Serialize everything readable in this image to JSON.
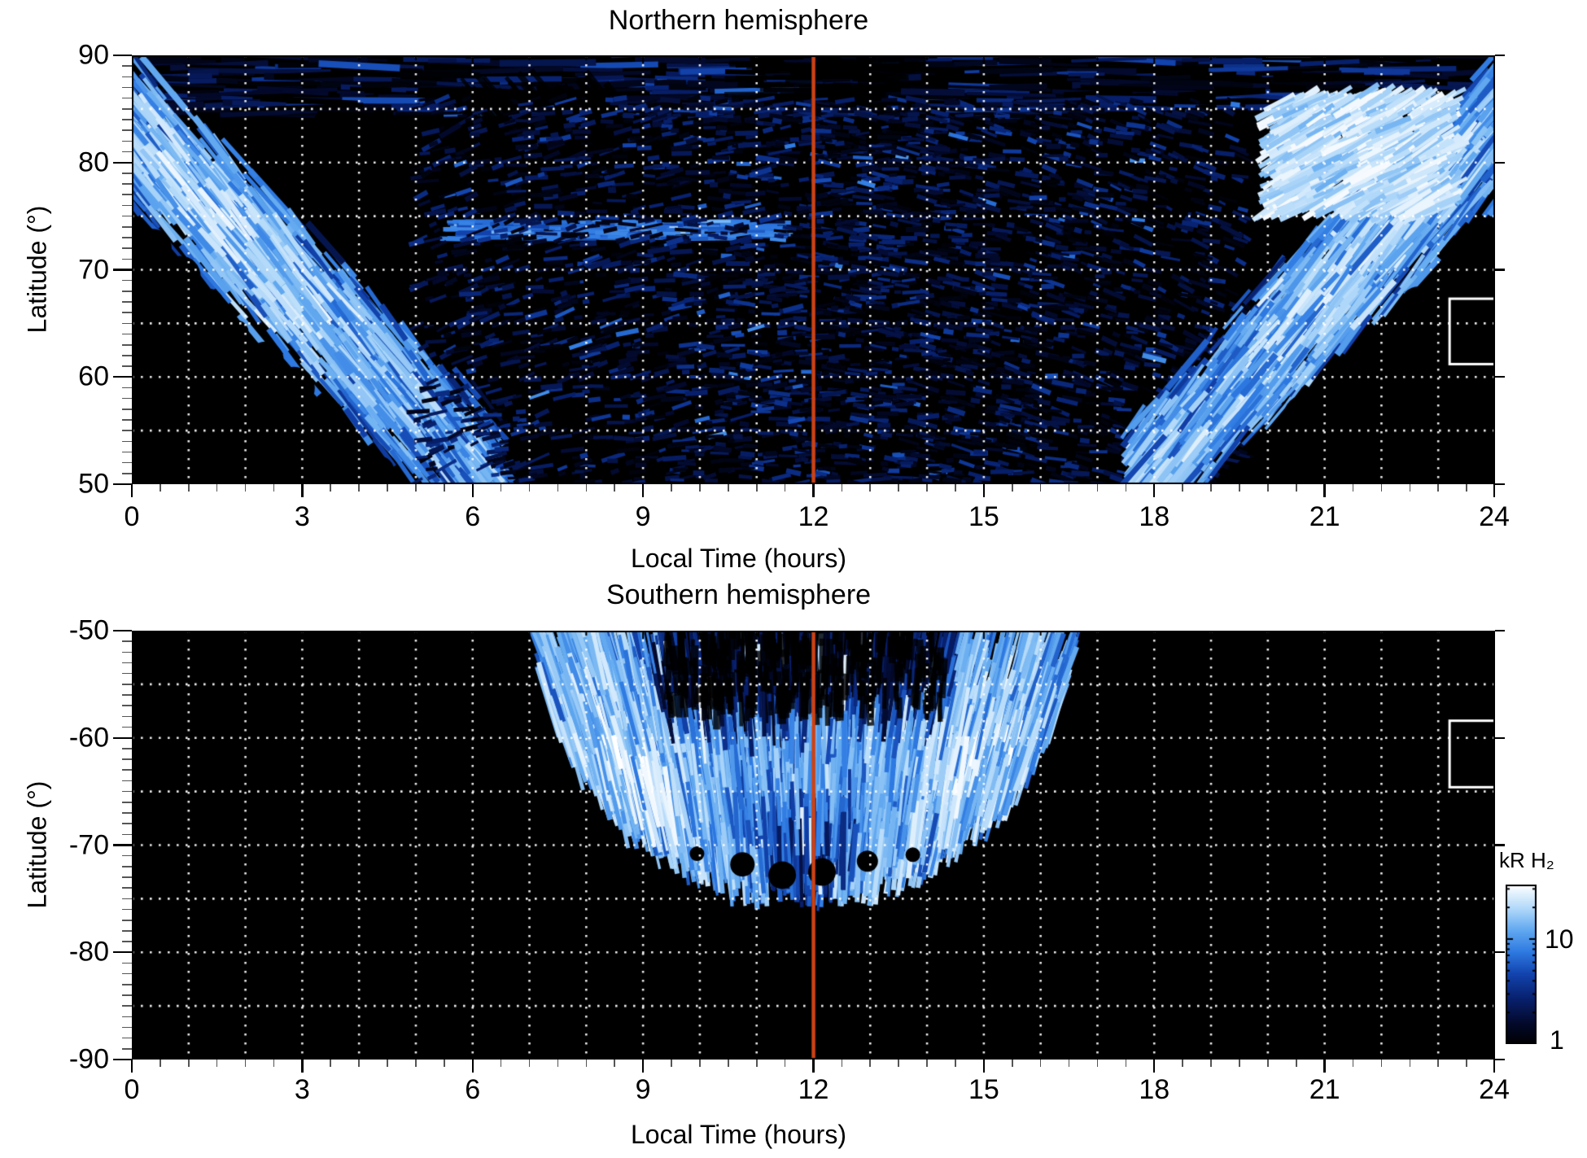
{
  "figure": {
    "background": "#ffffff",
    "description": "Two-panel heatmap of auroral H2 emission brightness versus magnetic local time and latitude, northern and southern hemispheres, with log color scale in kR."
  },
  "panels": [
    {
      "id": "north",
      "title": "Northern hemisphere",
      "xlabel": "Local Time (hours)",
      "ylabel": "Latitude (°)",
      "xtick_labels": [
        "0",
        "3",
        "6",
        "9",
        "12",
        "15",
        "18",
        "21",
        "24"
      ],
      "ytick_labels": [
        "90",
        "80",
        "70",
        "60",
        "50"
      ],
      "noon_line_hour": 12,
      "noon_line_color": "#cc4214",
      "fov_box_color": "#ffffff",
      "fov_box": {
        "hours": [
          23.2,
          24.0
        ],
        "lat": [
          61.2,
          67.3
        ]
      }
    },
    {
      "id": "south",
      "title": "Southern hemisphere",
      "xlabel": "Local Time (hours)",
      "ylabel": "Latitude (°)",
      "xtick_labels": [
        "0",
        "3",
        "6",
        "9",
        "12",
        "15",
        "18",
        "21",
        "24"
      ],
      "ytick_labels": [
        "-50",
        "-60",
        "-70",
        "-80",
        "-90"
      ],
      "noon_line_hour": 12,
      "noon_line_color": "#cc4214",
      "fov_box_color": "#ffffff",
      "fov_box": {
        "hours": [
          23.2,
          24.0
        ],
        "lat": [
          -64.6,
          -58.4
        ]
      }
    }
  ],
  "colorbar": {
    "label": "kR H₂",
    "tick_labels": [
      "10",
      "1"
    ],
    "tick_values": [
      10,
      1
    ],
    "scale": "log",
    "range_kR": [
      1,
      33
    ],
    "gradient_low_to_high": [
      "#000000",
      "#03092b",
      "#071f6b",
      "#1243ad",
      "#2e7ae2",
      "#63aaf0",
      "#b0d8f9",
      "#ffffff"
    ]
  },
  "chart_data": [
    {
      "type": "heatmap",
      "title": "Northern hemisphere",
      "xlabel": "Local Time (hours)",
      "ylabel": "Latitude (°)",
      "units": "kR H2",
      "x_range_hours": [
        0,
        24
      ],
      "y_range_deg": [
        50,
        90
      ],
      "xticks": [
        0,
        3,
        6,
        9,
        12,
        15,
        18,
        21,
        24
      ],
      "yticks": [
        50,
        60,
        70,
        80,
        90
      ],
      "grid": {
        "style": "dotted white",
        "x_step_hours": 1,
        "y_step_deg": 5
      },
      "color_scale": {
        "type": "log",
        "min_kR": 1,
        "max_kR": 33,
        "ramp": "black-blue-white"
      },
      "annotations": [
        {
          "type": "vline",
          "x_hours": 12,
          "color": "#cc4214",
          "label": "noon meridian"
        },
        {
          "type": "box",
          "x_hours": [
            23.2,
            24.0
          ],
          "y_deg": [
            61.2,
            67.3
          ],
          "color": "#ffffff",
          "label": "field-of-view box"
        }
      ],
      "x_bin_centers_hours": [
        0.5,
        1.5,
        2.5,
        3.5,
        4.5,
        5.5,
        6.5,
        7.5,
        8.5,
        9.5,
        10.5,
        11.5,
        12.5,
        13.5,
        14.5,
        15.5,
        16.5,
        17.5,
        18.5,
        19.5,
        20.5,
        21.5,
        22.5,
        23.5
      ],
      "y_bin_centers_deg": [
        87.5,
        82.5,
        77.5,
        72.5,
        67.5,
        62.5,
        57.5,
        52.5
      ],
      "no_data_value": 0,
      "values_kR": [
        [
          3,
          3,
          2,
          3,
          2,
          2,
          1,
          1,
          2,
          1,
          1,
          1,
          1,
          1,
          1,
          2,
          2,
          2,
          2,
          2,
          3,
          3,
          4,
          3
        ],
        [
          7,
          8,
          6,
          5,
          4,
          2,
          1,
          2,
          2,
          2,
          2,
          1,
          2,
          2,
          2,
          2,
          2,
          3,
          4,
          6,
          12,
          18,
          20,
          10
        ],
        [
          9,
          10,
          12,
          8,
          5,
          3,
          2,
          2,
          3,
          2,
          2,
          2,
          2,
          2,
          2,
          2,
          2,
          3,
          5,
          8,
          14,
          16,
          12,
          8
        ],
        [
          0,
          2,
          6,
          9,
          8,
          5,
          5,
          5,
          5,
          5,
          4,
          3,
          2,
          2,
          2,
          2,
          2,
          3,
          6,
          8,
          6,
          2,
          0,
          0
        ],
        [
          0,
          0,
          0,
          2,
          6,
          7,
          3,
          2,
          2,
          2,
          2,
          2,
          2,
          2,
          2,
          2,
          2,
          2,
          6,
          5,
          0,
          0,
          0,
          0
        ],
        [
          0,
          0,
          0,
          0,
          3,
          6,
          2,
          2,
          1,
          2,
          2,
          2,
          1,
          1,
          2,
          2,
          2,
          2,
          5,
          2,
          0,
          0,
          0,
          0
        ],
        [
          0,
          0,
          0,
          0,
          0,
          5,
          3,
          1,
          1,
          1,
          1,
          1,
          1,
          1,
          1,
          1,
          1,
          2,
          4,
          0,
          0,
          0,
          0,
          0
        ],
        [
          0,
          0,
          0,
          0,
          0,
          3,
          2,
          1,
          1,
          1,
          1,
          1,
          1,
          1,
          1,
          1,
          1,
          2,
          2,
          0,
          0,
          0,
          0,
          0
        ]
      ],
      "features": [
        "bright dawn-sector arc sweeping from (0 h, 83°) down to (5.5 h, 50°)",
        "bright dusk-sector arc sweeping from (18.5 h, 50°) up to (24 h, 83°)",
        "very bright white patch 20–23 h at 76–85° latitude",
        "thin horizontal bright streak near 73–74° from 6 h to 11 h",
        "sparse faint blue speckle across 6–18 h at 50–85°",
        "black no-data corners below the arcs near 0–5 h and 19–24 h"
      ]
    },
    {
      "type": "heatmap",
      "title": "Southern hemisphere",
      "xlabel": "Local Time (hours)",
      "ylabel": "Latitude (°)",
      "units": "kR H2",
      "x_range_hours": [
        0,
        24
      ],
      "y_range_deg": [
        -90,
        -50
      ],
      "xticks": [
        0,
        3,
        6,
        9,
        12,
        15,
        18,
        21,
        24
      ],
      "yticks": [
        -90,
        -80,
        -70,
        -60,
        -50
      ],
      "grid": {
        "style": "dotted white",
        "x_step_hours": 1,
        "y_step_deg": 5
      },
      "color_scale": {
        "type": "log",
        "min_kR": 1,
        "max_kR": 33,
        "ramp": "black-blue-white"
      },
      "annotations": [
        {
          "type": "vline",
          "x_hours": 12,
          "color": "#cc4214",
          "label": "noon meridian"
        },
        {
          "type": "box",
          "x_hours": [
            23.2,
            24.0
          ],
          "y_deg": [
            -64.6,
            -58.4
          ],
          "color": "#ffffff",
          "label": "field-of-view box"
        }
      ],
      "x_bin_centers_hours": [
        0.5,
        1.5,
        2.5,
        3.5,
        4.5,
        5.5,
        6.5,
        7.5,
        8.5,
        9.5,
        10.5,
        11.5,
        12.5,
        13.5,
        14.5,
        15.5,
        16.5,
        17.5,
        18.5,
        19.5,
        20.5,
        21.5,
        22.5,
        23.5
      ],
      "y_bin_centers_deg": [
        -52.5,
        -57.5,
        -62.5,
        -67.5,
        -72.5,
        -77.5,
        -82.5,
        -87.5
      ],
      "no_data_value": 0,
      "values_kR": [
        [
          0,
          0,
          0,
          0,
          0,
          0,
          0,
          2,
          5,
          4,
          2,
          2,
          2,
          3,
          5,
          5,
          2,
          0,
          0,
          0,
          0,
          0,
          0,
          0
        ],
        [
          0,
          0,
          0,
          0,
          0,
          0,
          0,
          0,
          2,
          6,
          8,
          5,
          4,
          5,
          8,
          6,
          2,
          0,
          0,
          0,
          0,
          0,
          0,
          0
        ],
        [
          0,
          0,
          0,
          0,
          0,
          0,
          0,
          0,
          0,
          5,
          9,
          10,
          9,
          9,
          7,
          2,
          0,
          0,
          0,
          0,
          0,
          0,
          0,
          0
        ],
        [
          0,
          0,
          0,
          0,
          0,
          0,
          0,
          0,
          0,
          0,
          6,
          8,
          7,
          5,
          0,
          0,
          0,
          0,
          0,
          0,
          0,
          0,
          0,
          0
        ],
        [
          0,
          0,
          0,
          0,
          0,
          0,
          0,
          0,
          0,
          0,
          0,
          3,
          3,
          0,
          0,
          0,
          0,
          0,
          0,
          0,
          0,
          0,
          0,
          0
        ],
        [
          0,
          0,
          0,
          0,
          0,
          0,
          0,
          0,
          0,
          0,
          0,
          0,
          0,
          0,
          0,
          0,
          0,
          0,
          0,
          0,
          0,
          0,
          0,
          0
        ],
        [
          0,
          0,
          0,
          0,
          0,
          0,
          0,
          0,
          0,
          0,
          0,
          0,
          0,
          0,
          0,
          0,
          0,
          0,
          0,
          0,
          0,
          0,
          0,
          0
        ],
        [
          0,
          0,
          0,
          0,
          0,
          0,
          0,
          0,
          0,
          0,
          0,
          0,
          0,
          0,
          0,
          0,
          0,
          0,
          0,
          0,
          0,
          0,
          0,
          0
        ]
      ],
      "features": [
        "fan-shaped emission region spanning 7.5–16.5 h at -50°, narrowing to a tip near 12 h, -72°",
        "bright radiating streaks forming a ring between -55° and -68°",
        "darker speckled core 9.5–13.5 h above -58°",
        "rest of the map black (no data)"
      ]
    }
  ]
}
